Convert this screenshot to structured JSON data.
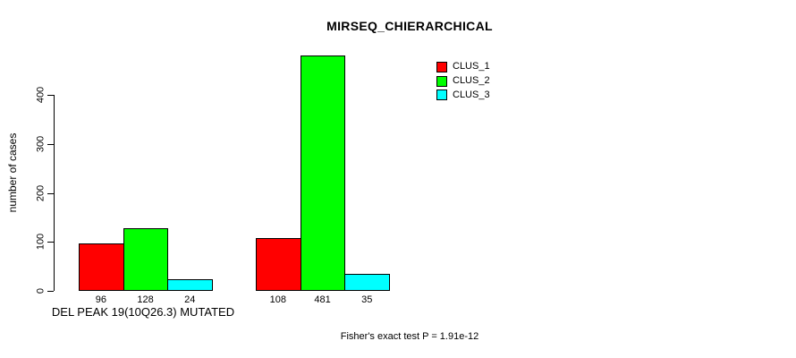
{
  "chart_data": {
    "type": "bar",
    "title": "MIRSEQ_CHIERARCHICAL",
    "ylabel": "number of cases",
    "xlabel": "DEL PEAK 19(10Q26.3) MUTATED",
    "categories": [
      "DEL PEAK 19(10Q26.3) MUTATED",
      ""
    ],
    "series": [
      {
        "name": "CLUS_1",
        "color": "#ff0000",
        "values": [
          96,
          108
        ]
      },
      {
        "name": "CLUS_2",
        "color": "#00ff00",
        "values": [
          128,
          481
        ]
      },
      {
        "name": "CLUS_3",
        "color": "#00ffff",
        "values": [
          24,
          35
        ]
      }
    ],
    "bar_value_labels": [
      [
        96,
        128,
        24
      ],
      [
        108,
        481,
        35
      ]
    ],
    "yticks": [
      0,
      100,
      200,
      300,
      400
    ],
    "ylim": [
      0,
      500
    ],
    "grid": false,
    "legend_position": "top-right",
    "annotation": "Fisher's exact test P = 1.91e-12"
  },
  "colors": {
    "background": "#ffffff",
    "axis": "#000000",
    "text": "#000000"
  }
}
